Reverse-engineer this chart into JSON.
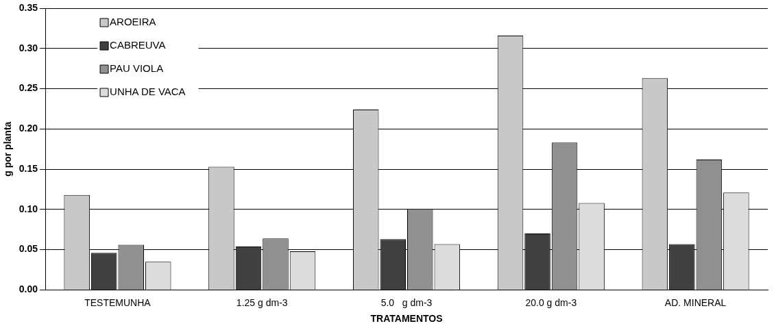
{
  "chart_data": {
    "type": "bar",
    "xlabel": "TRATAMENTOS",
    "ylabel": "g por planta",
    "categories": [
      "TESTEMUNHA",
      "1.25 g dm-3",
      "5.0   g dm-3",
      "20.0 g dm-3",
      "AD. MINERAL"
    ],
    "series": [
      {
        "name": "AROEIRA",
        "color": "#c8c8c8",
        "values": [
          0.118,
          0.153,
          0.224,
          0.316,
          0.263
        ]
      },
      {
        "name": "CABREUVA",
        "color": "#404040",
        "values": [
          0.046,
          0.054,
          0.063,
          0.07,
          0.057
        ]
      },
      {
        "name": "PAU VIOLA",
        "color": "#909090",
        "values": [
          0.056,
          0.064,
          0.101,
          0.183,
          0.162
        ]
      },
      {
        "name": "UNHA DE VACA",
        "color": "#dcdcdc",
        "values": [
          0.035,
          0.048,
          0.057,
          0.108,
          0.121
        ]
      }
    ],
    "ylim": [
      0,
      0.35
    ],
    "yticks": [
      {
        "value": 0,
        "label": "0.00"
      },
      {
        "value": 0.05,
        "label": "0.05"
      },
      {
        "value": 0.1,
        "label": "0.10"
      },
      {
        "value": 0.15,
        "label": "0.15"
      },
      {
        "value": 0.2,
        "label": "0.20"
      },
      {
        "value": 0.25,
        "label": "0.25"
      },
      {
        "value": 0.3,
        "label": "0.30"
      },
      {
        "value": 0.35,
        "label": "0.35"
      }
    ],
    "grid": "y",
    "legend": "top left"
  }
}
